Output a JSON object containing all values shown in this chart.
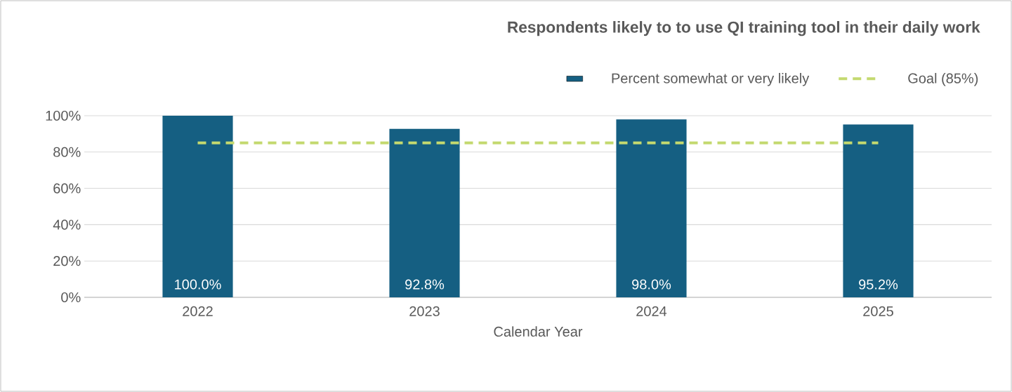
{
  "chart_data": {
    "type": "bar",
    "title": "Respondents likely to to use QI training tool in their daily work",
    "xlabel": "Calendar Year",
    "categories": [
      "2022",
      "2023",
      "2024",
      "2025"
    ],
    "series": [
      {
        "name": "Percent somewhat or very likely",
        "color": "#155f82",
        "values": [
          100.0,
          92.8,
          98.0,
          95.2
        ],
        "value_labels": [
          "100.0%",
          "92.8%",
          "98.0%",
          "95.2%"
        ]
      },
      {
        "name": "Goal (85%)",
        "type": "line",
        "color": "#c4d96f",
        "line_style": "dashed",
        "marker": "none",
        "values": [
          85,
          85,
          85,
          85
        ]
      }
    ],
    "ylim": [
      0,
      100
    ],
    "yticks": [
      {
        "value": 0,
        "label": "0%"
      },
      {
        "value": 20,
        "label": "20%"
      },
      {
        "value": 40,
        "label": "40%"
      },
      {
        "value": 60,
        "label": "60%"
      },
      {
        "value": 80,
        "label": "80%"
      },
      {
        "value": 100,
        "label": "100%"
      }
    ],
    "grid": "y",
    "legend": "top right"
  }
}
